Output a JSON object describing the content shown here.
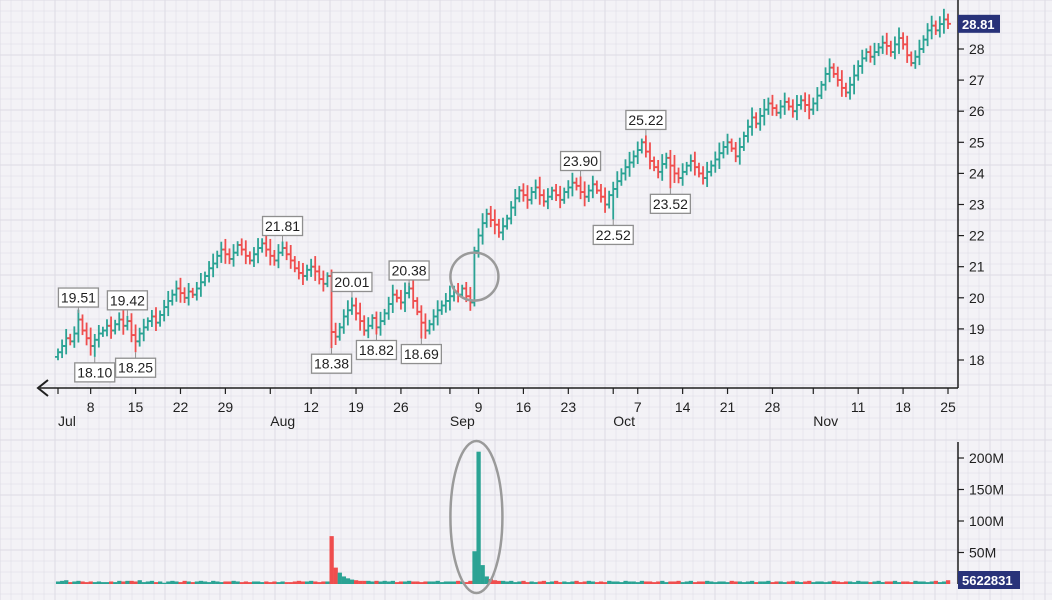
{
  "chart_data": {
    "type": "ohlc",
    "price_axis": {
      "ticks": [
        18,
        19,
        20,
        21,
        22,
        23,
        24,
        25,
        26,
        27,
        28
      ],
      "range": [
        17.0,
        29.3
      ],
      "last_price": "28.81"
    },
    "volume_axis": {
      "ticks": [
        50,
        100,
        150,
        200
      ],
      "tick_labels": [
        "50M",
        "100M",
        "150M",
        "200M"
      ],
      "unit": "M",
      "range": [
        0,
        210
      ],
      "last_volume": "5622831"
    },
    "x_axis": {
      "day_ticks": [
        "8",
        "15",
        "22",
        "29",
        "12",
        "19",
        "26",
        "9",
        "16",
        "23",
        "7",
        "14",
        "21",
        "28",
        "11",
        "18",
        "25"
      ],
      "month_labels": [
        "Jul",
        "Aug",
        "Sep",
        "Oct",
        "Nov"
      ]
    },
    "annotations": [
      {
        "text": "19.51",
        "bar": 5,
        "pos": "above"
      },
      {
        "text": "18.10",
        "bar": 9,
        "pos": "below"
      },
      {
        "text": "19.42",
        "bar": 17,
        "pos": "above"
      },
      {
        "text": "18.25",
        "bar": 19,
        "pos": "below"
      },
      {
        "text": "21.81",
        "bar": 55,
        "pos": "above"
      },
      {
        "text": "18.38",
        "bar": 67,
        "pos": "below"
      },
      {
        "text": "20.01",
        "bar": 72,
        "pos": "above"
      },
      {
        "text": "18.82",
        "bar": 78,
        "pos": "below"
      },
      {
        "text": "20.38",
        "bar": 86,
        "pos": "above"
      },
      {
        "text": "18.69",
        "bar": 89,
        "pos": "below"
      },
      {
        "text": "23.90",
        "bar": 128,
        "pos": "above"
      },
      {
        "text": "22.52",
        "bar": 136,
        "pos": "below"
      },
      {
        "text": "25.22",
        "bar": 144,
        "pos": "above"
      },
      {
        "text": "23.52",
        "bar": 150,
        "pos": "below"
      }
    ],
    "highlight_bar": 102,
    "closes": [
      18.25,
      18.45,
      18.7,
      18.6,
      18.85,
      19.3,
      18.95,
      18.7,
      18.45,
      18.65,
      18.85,
      18.95,
      19.1,
      18.95,
      19.15,
      19.3,
      19.1,
      19.25,
      18.8,
      18.6,
      18.85,
      19.05,
      19.25,
      19.4,
      19.2,
      19.45,
      19.7,
      19.9,
      20.1,
      20.3,
      20.15,
      20.0,
      20.2,
      20.1,
      20.3,
      20.5,
      20.7,
      20.95,
      21.1,
      21.35,
      21.55,
      21.4,
      21.25,
      21.45,
      21.7,
      21.55,
      21.35,
      21.2,
      21.4,
      21.6,
      21.75,
      21.55,
      21.35,
      21.2,
      21.45,
      21.6,
      21.4,
      21.2,
      20.95,
      20.8,
      20.7,
      20.9,
      21.0,
      20.85,
      20.6,
      20.45,
      20.7,
      18.9,
      18.75,
      19.05,
      19.4,
      19.6,
      19.75,
      19.5,
      19.25,
      18.95,
      19.1,
      19.35,
      19.05,
      19.25,
      19.5,
      19.8,
      20.1,
      20.0,
      19.85,
      20.15,
      20.3,
      19.9,
      19.55,
      19.2,
      18.95,
      19.15,
      19.4,
      19.6,
      19.75,
      19.9,
      20.05,
      20.2,
      20.1,
      20.3,
      20.05,
      19.85,
      21.5,
      22.0,
      22.4,
      22.7,
      22.5,
      22.35,
      22.1,
      22.3,
      22.55,
      22.9,
      23.2,
      23.45,
      23.3,
      23.15,
      23.4,
      23.55,
      23.3,
      23.1,
      23.25,
      23.45,
      23.3,
      23.15,
      23.4,
      23.55,
      23.7,
      23.6,
      23.4,
      23.25,
      23.45,
      23.65,
      23.45,
      23.25,
      23.0,
      23.3,
      23.5,
      23.75,
      24.0,
      24.2,
      24.35,
      24.55,
      24.75,
      25.0,
      24.7,
      24.4,
      24.2,
      24.05,
      24.3,
      24.5,
      24.25,
      24.0,
      23.85,
      24.05,
      24.25,
      24.4,
      24.2,
      24.0,
      23.85,
      24.05,
      24.25,
      24.45,
      24.65,
      24.85,
      25.0,
      24.8,
      24.55,
      24.85,
      25.2,
      25.5,
      25.8,
      25.6,
      25.85,
      26.05,
      26.25,
      26.1,
      25.95,
      26.15,
      26.3,
      26.15,
      26.0,
      26.2,
      26.35,
      26.2,
      26.05,
      26.25,
      26.5,
      26.85,
      27.2,
      27.4,
      27.2,
      27.0,
      26.75,
      26.6,
      26.85,
      27.15,
      27.45,
      27.7,
      27.9,
      27.75,
      27.9,
      28.05,
      28.2,
      28.1,
      27.9,
      28.15,
      28.35,
      28.15,
      27.8,
      27.55,
      27.75,
      28.0,
      28.3,
      28.6,
      28.75,
      28.6,
      28.8,
      28.95,
      28.81
    ],
    "volumes": [
      4,
      5,
      6,
      3,
      4,
      5,
      4,
      3,
      4,
      3,
      4,
      3,
      3,
      4,
      3,
      5,
      4,
      5,
      5,
      4,
      6,
      3,
      4,
      5,
      3,
      4,
      2,
      4,
      5,
      4,
      3,
      5,
      4,
      3,
      4,
      5,
      4,
      3,
      5,
      4,
      3,
      4,
      4,
      5,
      4,
      3,
      4,
      3,
      4,
      4,
      3,
      4,
      3,
      4,
      3,
      4,
      3,
      3,
      4,
      5,
      4,
      4,
      5,
      4,
      3,
      4,
      4,
      76,
      26,
      18,
      12,
      9,
      7,
      6,
      5,
      5,
      5,
      4,
      5,
      4,
      5,
      4,
      5,
      3,
      4,
      4,
      5,
      4,
      4,
      3,
      4,
      4,
      4,
      5,
      3,
      4,
      4,
      4,
      5,
      4,
      3,
      5,
      52,
      210,
      30,
      12,
      8,
      6,
      5,
      5,
      4,
      5,
      3,
      4,
      5,
      3,
      4,
      3,
      4,
      5,
      3,
      4,
      5,
      3,
      4,
      3,
      4,
      5,
      3,
      4,
      5,
      4,
      3,
      4,
      3,
      5,
      4,
      4,
      3,
      5,
      4,
      4,
      3,
      5,
      4,
      4,
      3,
      4,
      5,
      3,
      4,
      4,
      5,
      3,
      4,
      5,
      3,
      4,
      4,
      5,
      4,
      3,
      4,
      4,
      3,
      5,
      4,
      4,
      3,
      4,
      5,
      3,
      4,
      4,
      5,
      3,
      4,
      4,
      3,
      4,
      5,
      4,
      3,
      4,
      5,
      3,
      4,
      4,
      3,
      4,
      5,
      4,
      3,
      4,
      4,
      3,
      5,
      4,
      4,
      3,
      4,
      5,
      3,
      4,
      4,
      5,
      3,
      4,
      4,
      3,
      5,
      4,
      4,
      3,
      4,
      5,
      3,
      4,
      6
    ],
    "colors": {
      "up": "#2ba394",
      "down": "#ef4e4e",
      "price_tag": "#283279",
      "grid": "#dcdbe4",
      "axis": "#1f1f1f",
      "highlight": "#9a9a9a"
    }
  }
}
